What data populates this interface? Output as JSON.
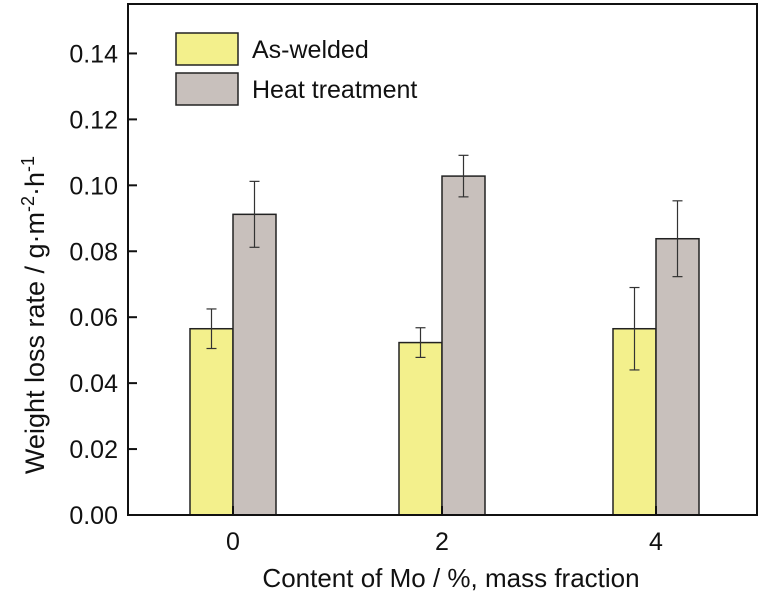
{
  "chart_data": {
    "type": "bar",
    "categories": [
      "0",
      "2",
      "4"
    ],
    "series": [
      {
        "name": "As-welded",
        "color": "#f3f08c",
        "values": [
          0.0565,
          0.0523,
          0.0565
        ],
        "errors": [
          0.006,
          0.0045,
          0.0125
        ]
      },
      {
        "name": "Heat treatment",
        "color": "#c8c0bc",
        "values": [
          0.0912,
          0.1028,
          0.0838
        ],
        "errors": [
          0.01,
          0.0063,
          0.0115
        ]
      }
    ],
    "xlabel": "Content of Mo / %, mass fraction",
    "ylabel": {
      "main": "Weight loss rate / g·m",
      "sup1": "-2",
      "mid": "·h",
      "sup2": "-1"
    },
    "ylim": [
      0,
      0.155
    ],
    "yticks": [
      "0.00",
      "0.02",
      "0.04",
      "0.06",
      "0.08",
      "0.10",
      "0.12",
      "0.14"
    ],
    "legend_position": "top-left",
    "grid": false
  }
}
